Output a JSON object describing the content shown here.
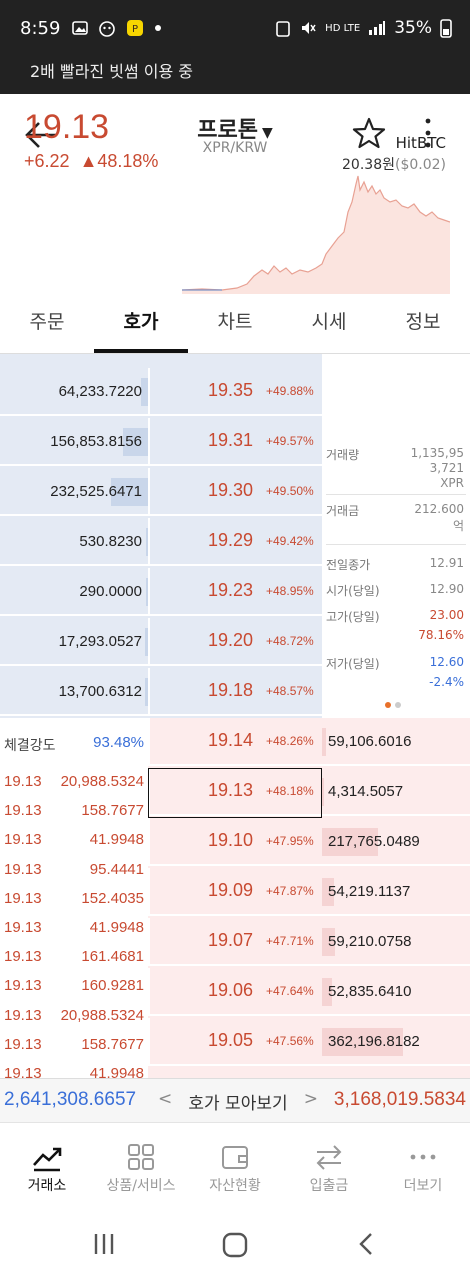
{
  "status_bar": {
    "time": "8:59",
    "battery": "35%",
    "network": "HD LTE"
  },
  "notice": "2배 빨라진 빗썸 이용 중",
  "header": {
    "coin_name": "프로톤",
    "pair": "XPR/KRW",
    "price": "19.13",
    "change_abs": "+6.22",
    "change_pct": "▲48.18%",
    "exchange": "HitBTC",
    "exchange_price": "20.38원",
    "exchange_diff": "($0.02)"
  },
  "tabs": [
    "주문",
    "호가",
    "차트",
    "시세",
    "정보"
  ],
  "active_tab": 1,
  "asks": [
    {
      "qty": "64,233.7220",
      "price": "19.35",
      "pct": "+49.88%",
      "fill": 0.05
    },
    {
      "qty": "156,853.8156",
      "price": "19.31",
      "pct": "+49.57%",
      "fill": 0.17
    },
    {
      "qty": "232,525.6471",
      "price": "19.30",
      "pct": "+49.50%",
      "fill": 0.25
    },
    {
      "qty": "530.8230",
      "price": "19.29",
      "pct": "+49.42%",
      "fill": 0.01
    },
    {
      "qty": "290.0000",
      "price": "19.23",
      "pct": "+48.95%",
      "fill": 0.01
    },
    {
      "qty": "17,293.0527",
      "price": "19.20",
      "pct": "+48.72%",
      "fill": 0.02
    },
    {
      "qty": "13,700.6312",
      "price": "19.18",
      "pct": "+48.57%",
      "fill": 0.02
    }
  ],
  "bids": [
    {
      "qty": "59,106.6016",
      "price": "19.14",
      "pct": "+48.26%",
      "fill": 0.03
    },
    {
      "qty": "4,314.5057",
      "price": "19.13",
      "pct": "+48.18%",
      "fill": 0.005
    },
    {
      "qty": "217,765.0489",
      "price": "19.10",
      "pct": "+47.95%",
      "fill": 0.38
    },
    {
      "qty": "54,219.1137",
      "price": "19.09",
      "pct": "+47.87%",
      "fill": 0.08
    },
    {
      "qty": "59,210.0758",
      "price": "19.07",
      "pct": "+47.71%",
      "fill": 0.09
    },
    {
      "qty": "52,835.6410",
      "price": "19.06",
      "pct": "+47.64%",
      "fill": 0.07
    },
    {
      "qty": "362,196.8182",
      "price": "19.05",
      "pct": "+47.56%",
      "fill": 0.55
    }
  ],
  "current_price_index": 1,
  "info": {
    "volume_label": "거래량",
    "volume_value_1": "1,135,95",
    "volume_value_2": "3,721",
    "volume_unit": "XPR",
    "amount_label": "거래금",
    "amount_value": "212.600",
    "amount_unit": "억",
    "prev_close_label": "전일종가",
    "prev_close": "12.91",
    "open_label": "시가(당일)",
    "open": "12.90",
    "high_label": "고가(당일)",
    "high": "23.00",
    "high_pct": "78.16%",
    "low_label": "저가(당일)",
    "low": "12.60",
    "low_pct": "-2.4%"
  },
  "trades": {
    "strength_label": "체결강도",
    "strength_value": "93.48%",
    "rows": [
      {
        "price": "19.13",
        "qty": "20,988.5324"
      },
      {
        "price": "19.13",
        "qty": "158.7677"
      },
      {
        "price": "19.13",
        "qty": "41.9948"
      },
      {
        "price": "19.13",
        "qty": "95.4441"
      },
      {
        "price": "19.13",
        "qty": "152.4035"
      },
      {
        "price": "19.13",
        "qty": "41.9948"
      },
      {
        "price": "19.13",
        "qty": "161.4681"
      },
      {
        "price": "19.13",
        "qty": "160.9281"
      },
      {
        "price": "19.13",
        "qty": "20,988.5324"
      },
      {
        "price": "19.13",
        "qty": "158.7677"
      },
      {
        "price": "19.13",
        "qty": "41.9948"
      }
    ]
  },
  "summary": {
    "ask_total": "2,641,308.6657",
    "middle_label": "호가 모아보기",
    "bid_total": "3,168,019.5834"
  },
  "bottom_nav": [
    {
      "label": "거래소",
      "icon": "trend-chart-icon"
    },
    {
      "label": "상품/서비스",
      "icon": "grid-icon"
    },
    {
      "label": "자산현황",
      "icon": "wallet-icon"
    },
    {
      "label": "입출금",
      "icon": "transfer-arrows-icon"
    },
    {
      "label": "더보기",
      "icon": "more-dots-icon"
    }
  ],
  "colors": {
    "rise": "#c84a31",
    "fall": "#3a6fd8",
    "ask_bg": "#e4eaf4",
    "bid_bg": "#fdecec"
  }
}
